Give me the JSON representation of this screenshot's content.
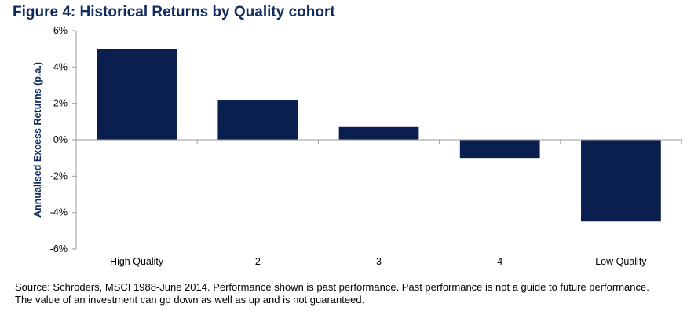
{
  "title": "Figure 4: Historical Returns by Quality cohort",
  "source": [
    "Source: Schroders, MSCI 1988-June 2014. Performance shown is past performance. Past performance is not a guide to future performance.",
    "The value of an investment can go down as well as up and is not guaranteed."
  ],
  "colors": {
    "bar": "#0a1f4d",
    "axis": "#9a9a9a",
    "title": "#0f2a5c"
  },
  "chart_data": {
    "type": "bar",
    "categories": [
      "High Quality",
      "2",
      "3",
      "4",
      "Low Quality"
    ],
    "values": [
      5.0,
      2.2,
      0.7,
      -1.0,
      -4.5
    ],
    "ylabel": "Annualised Excess Returns (p.a.)",
    "ylim": [
      -6,
      6
    ],
    "yticks": [
      6,
      4,
      2,
      0,
      -2,
      -4,
      -6
    ],
    "ytick_labels": [
      "6%",
      "4%",
      "2%",
      "0%",
      "-2%",
      "-4%",
      "-6%"
    ],
    "grid": false,
    "legend": "none"
  }
}
